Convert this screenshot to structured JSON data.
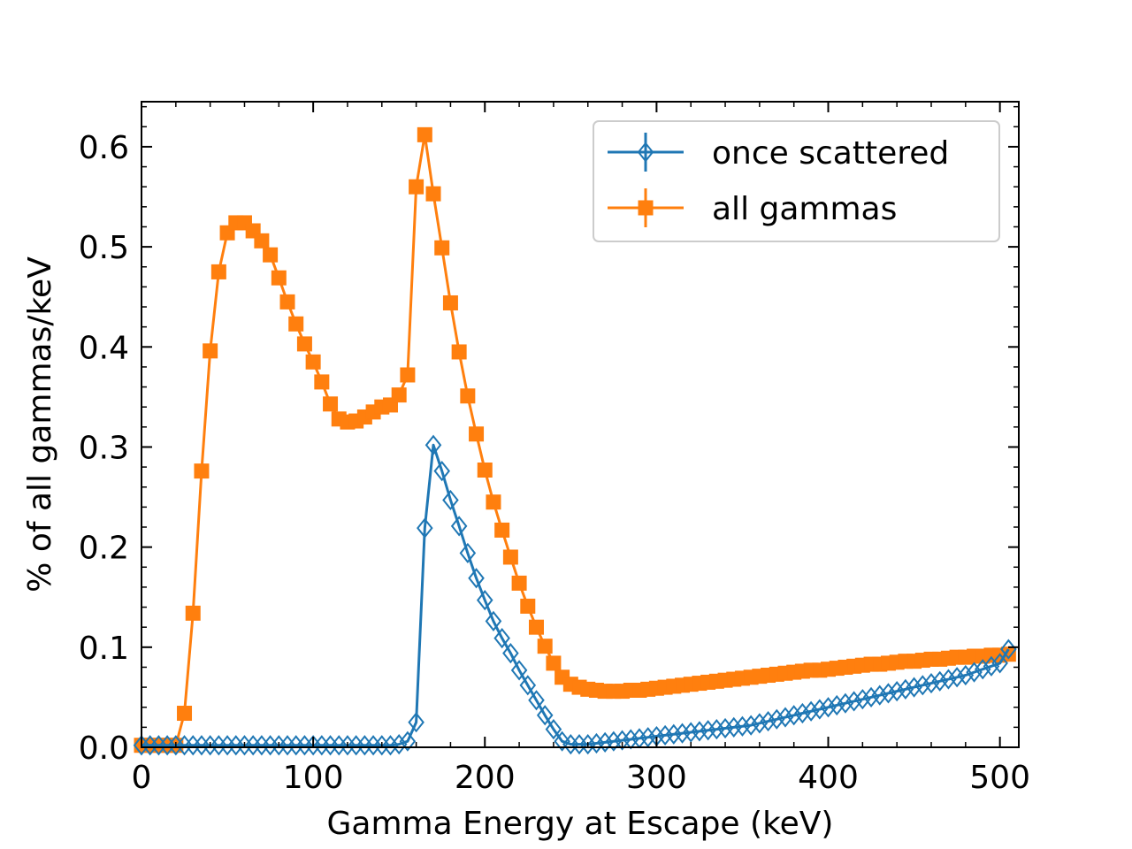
{
  "chart_data": {
    "type": "line",
    "title": "",
    "xlabel": "Gamma Energy at Escape (keV)",
    "ylabel": "% of all gammas/keV",
    "xlim": [
      0,
      511
    ],
    "ylim": [
      0,
      0.645
    ],
    "xticks": [
      0,
      100,
      200,
      300,
      400,
      500
    ],
    "xtick_labels": [
      "0",
      "100",
      "200",
      "300",
      "400",
      "500"
    ],
    "yticks": [
      0.0,
      0.1,
      0.2,
      0.3,
      0.4,
      0.5,
      0.6
    ],
    "ytick_labels": [
      "0.0",
      "0.1",
      "0.2",
      "0.3",
      "0.4",
      "0.5",
      "0.6"
    ],
    "grid": false,
    "legend_position": "top-right",
    "series": [
      {
        "name": "once scattered",
        "color": "#1f77b4",
        "marker": "diamond-open",
        "x": [
          0,
          5,
          10,
          15,
          20,
          25,
          30,
          35,
          40,
          45,
          50,
          55,
          60,
          65,
          70,
          75,
          80,
          85,
          90,
          95,
          100,
          105,
          110,
          115,
          120,
          125,
          130,
          135,
          140,
          145,
          150,
          155,
          160,
          165,
          170,
          175,
          180,
          185,
          190,
          195,
          200,
          205,
          210,
          215,
          220,
          225,
          230,
          235,
          240,
          245,
          250,
          255,
          260,
          265,
          270,
          275,
          280,
          285,
          290,
          295,
          300,
          305,
          310,
          315,
          320,
          325,
          330,
          335,
          340,
          345,
          350,
          355,
          360,
          365,
          370,
          375,
          380,
          385,
          390,
          395,
          400,
          405,
          410,
          415,
          420,
          425,
          430,
          435,
          440,
          445,
          450,
          455,
          460,
          465,
          470,
          475,
          480,
          485,
          490,
          495,
          500,
          505
        ],
        "y": [
          0.002,
          0.002,
          0.002,
          0.002,
          0.002,
          0.002,
          0.002,
          0.002,
          0.002,
          0.002,
          0.002,
          0.002,
          0.002,
          0.002,
          0.002,
          0.002,
          0.002,
          0.002,
          0.002,
          0.002,
          0.002,
          0.002,
          0.002,
          0.002,
          0.002,
          0.002,
          0.002,
          0.002,
          0.002,
          0.002,
          0.003,
          0.006,
          0.025,
          0.219,
          0.302,
          0.276,
          0.247,
          0.221,
          0.194,
          0.169,
          0.147,
          0.126,
          0.109,
          0.094,
          0.077,
          0.062,
          0.047,
          0.032,
          0.018,
          0.006,
          0.003,
          0.003,
          0.003,
          0.004,
          0.005,
          0.006,
          0.007,
          0.008,
          0.009,
          0.01,
          0.011,
          0.012,
          0.013,
          0.014,
          0.015,
          0.016,
          0.017,
          0.018,
          0.019,
          0.02,
          0.021,
          0.022,
          0.024,
          0.026,
          0.028,
          0.03,
          0.032,
          0.034,
          0.036,
          0.038,
          0.04,
          0.042,
          0.044,
          0.046,
          0.048,
          0.05,
          0.052,
          0.054,
          0.056,
          0.058,
          0.06,
          0.062,
          0.064,
          0.066,
          0.068,
          0.07,
          0.072,
          0.075,
          0.078,
          0.081,
          0.084,
          0.098
        ]
      },
      {
        "name": "all gammas",
        "color": "#ff7f0e",
        "marker": "square-filled",
        "x": [
          0,
          5,
          10,
          15,
          20,
          25,
          30,
          35,
          40,
          45,
          50,
          55,
          60,
          65,
          70,
          75,
          80,
          85,
          90,
          95,
          100,
          105,
          110,
          115,
          120,
          125,
          130,
          135,
          140,
          145,
          150,
          155,
          160,
          165,
          170,
          175,
          180,
          185,
          190,
          195,
          200,
          205,
          210,
          215,
          220,
          225,
          230,
          235,
          240,
          245,
          250,
          255,
          260,
          265,
          270,
          275,
          280,
          285,
          290,
          295,
          300,
          305,
          310,
          315,
          320,
          325,
          330,
          335,
          340,
          345,
          350,
          355,
          360,
          365,
          370,
          375,
          380,
          385,
          390,
          395,
          400,
          405,
          410,
          415,
          420,
          425,
          430,
          435,
          440,
          445,
          450,
          455,
          460,
          465,
          470,
          475,
          480,
          485,
          490,
          495,
          500,
          505
        ],
        "y": [
          0.002,
          0.002,
          0.002,
          0.002,
          0.002,
          0.034,
          0.134,
          0.276,
          0.396,
          0.475,
          0.514,
          0.524,
          0.524,
          0.516,
          0.506,
          0.492,
          0.469,
          0.445,
          0.423,
          0.403,
          0.385,
          0.365,
          0.343,
          0.328,
          0.325,
          0.326,
          0.33,
          0.335,
          0.34,
          0.342,
          0.352,
          0.372,
          0.56,
          0.612,
          0.553,
          0.499,
          0.444,
          0.395,
          0.351,
          0.313,
          0.277,
          0.245,
          0.217,
          0.19,
          0.164,
          0.141,
          0.12,
          0.101,
          0.084,
          0.07,
          0.063,
          0.06,
          0.058,
          0.057,
          0.056,
          0.056,
          0.056,
          0.057,
          0.057,
          0.058,
          0.059,
          0.06,
          0.061,
          0.062,
          0.063,
          0.064,
          0.065,
          0.066,
          0.067,
          0.068,
          0.069,
          0.07,
          0.071,
          0.072,
          0.073,
          0.074,
          0.075,
          0.076,
          0.077,
          0.077,
          0.078,
          0.079,
          0.08,
          0.081,
          0.082,
          0.083,
          0.083,
          0.084,
          0.085,
          0.086,
          0.086,
          0.087,
          0.088,
          0.088,
          0.089,
          0.09,
          0.09,
          0.091,
          0.091,
          0.092,
          0.092,
          0.093
        ]
      }
    ]
  }
}
